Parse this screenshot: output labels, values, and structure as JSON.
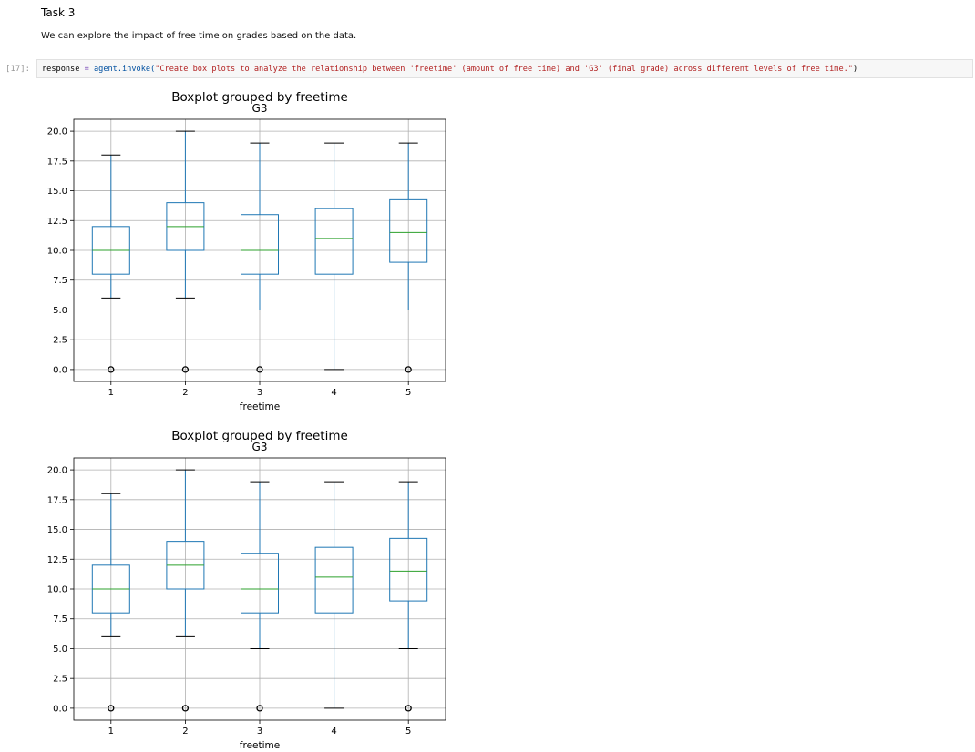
{
  "notebook": {
    "markdown": {
      "heading": "Task 3",
      "text": "We can explore the impact of free time on grades based on the data."
    },
    "cell": {
      "prompt": "[17]:",
      "code": {
        "variable": "response",
        "operator": "=",
        "object_call": "agent.invoke(",
        "string": "\"Create box plots to analyze the relationship between 'freetime' (amount of free time) and 'G3' (final grade) across different levels of free time.\"",
        "close": ")"
      }
    }
  },
  "colors": {
    "box": "#1f77b4",
    "median": "#2ca02c",
    "whisker_cap": "#000000",
    "grid": "#b0b0b0"
  },
  "chart_data": [
    {
      "type": "box",
      "suptitle": "Boxplot grouped by freetime",
      "title": "G3",
      "xlabel": "freetime",
      "ylabel": "",
      "ylim": [
        -1,
        21
      ],
      "yticks": [
        "0.0",
        "2.5",
        "5.0",
        "7.5",
        "10.0",
        "12.5",
        "15.0",
        "17.5",
        "20.0"
      ],
      "categories": [
        "1",
        "2",
        "3",
        "4",
        "5"
      ],
      "grid": true,
      "boxes": [
        {
          "whislo": 6,
          "q1": 8,
          "med": 10,
          "q3": 12,
          "whishi": 18,
          "fliers": [
            0
          ]
        },
        {
          "whislo": 6,
          "q1": 10,
          "med": 12,
          "q3": 14,
          "whishi": 20,
          "fliers": [
            0
          ]
        },
        {
          "whislo": 5,
          "q1": 8,
          "med": 10,
          "q3": 13,
          "whishi": 19,
          "fliers": [
            0
          ]
        },
        {
          "whislo": 0,
          "q1": 8,
          "med": 11,
          "q3": 13.5,
          "whishi": 19,
          "fliers": []
        },
        {
          "whislo": 5,
          "q1": 9,
          "med": 11.5,
          "q3": 14.25,
          "whishi": 19,
          "fliers": [
            0
          ]
        }
      ]
    },
    {
      "type": "box",
      "suptitle": "Boxplot grouped by freetime",
      "title": "G3",
      "xlabel": "freetime",
      "ylabel": "",
      "ylim": [
        -1,
        21
      ],
      "yticks": [
        "0.0",
        "2.5",
        "5.0",
        "7.5",
        "10.0",
        "12.5",
        "15.0",
        "17.5",
        "20.0"
      ],
      "categories": [
        "1",
        "2",
        "3",
        "4",
        "5"
      ],
      "grid": true,
      "boxes": [
        {
          "whislo": 6,
          "q1": 8,
          "med": 10,
          "q3": 12,
          "whishi": 18,
          "fliers": [
            0
          ]
        },
        {
          "whislo": 6,
          "q1": 10,
          "med": 12,
          "q3": 14,
          "whishi": 20,
          "fliers": [
            0
          ]
        },
        {
          "whislo": 5,
          "q1": 8,
          "med": 10,
          "q3": 13,
          "whishi": 19,
          "fliers": [
            0
          ]
        },
        {
          "whislo": 0,
          "q1": 8,
          "med": 11,
          "q3": 13.5,
          "whishi": 19,
          "fliers": []
        },
        {
          "whislo": 5,
          "q1": 9,
          "med": 11.5,
          "q3": 14.25,
          "whishi": 19,
          "fliers": [
            0
          ]
        }
      ]
    }
  ]
}
